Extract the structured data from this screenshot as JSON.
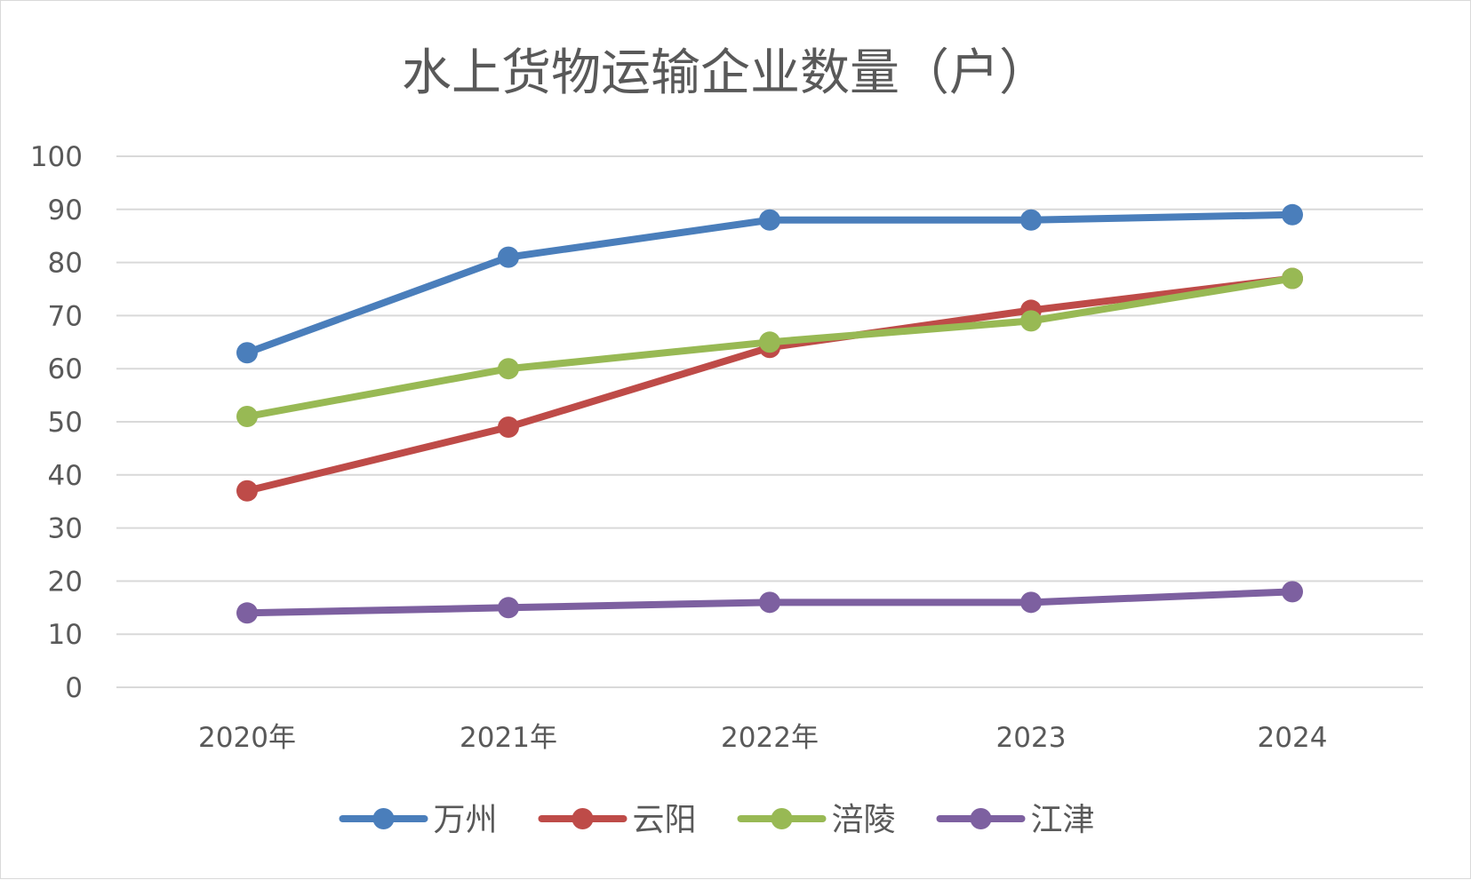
{
  "chart_data": {
    "type": "line",
    "title": "水上货物运输企业数量（户）",
    "categories": [
      "2020年",
      "2021年",
      "2022年",
      "2023",
      "2024"
    ],
    "ylim": [
      0,
      100
    ],
    "yticks": [
      "0",
      "10",
      "20",
      "30",
      "40",
      "50",
      "60",
      "70",
      "80",
      "90",
      "100"
    ],
    "grid": true,
    "legend_position": "bottom",
    "series": [
      {
        "name": "万州",
        "color": "#4A7EBB",
        "values": [
          63,
          81,
          88,
          88,
          89
        ]
      },
      {
        "name": "云阳",
        "color": "#BE4B48",
        "values": [
          37,
          49,
          64,
          71,
          77
        ]
      },
      {
        "name": "涪陵",
        "color": "#98B954",
        "values": [
          51,
          60,
          65,
          69,
          77
        ]
      },
      {
        "name": "江津",
        "color": "#7D60A0",
        "values": [
          14,
          15,
          16,
          16,
          18
        ]
      }
    ]
  }
}
